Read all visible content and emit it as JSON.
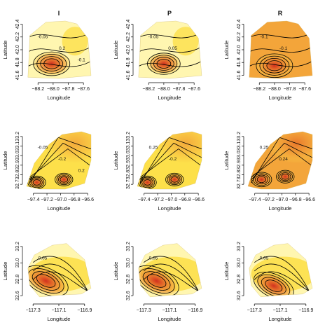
{
  "figure": {
    "column_titles": [
      "I",
      "P",
      "R"
    ],
    "xlabel": "Longitude",
    "ylabel": "Latitude"
  },
  "colors": {
    "pale": "#fff6b0",
    "yellow": "#fde04a",
    "orange": "#f3a53a",
    "deep_orange": "#e8742a",
    "red": "#d1311e",
    "contour": "#000000"
  },
  "chart_data": [
    {
      "type": "heatmap",
      "row": 1,
      "col": "I",
      "title": "I",
      "xlabel": "Longitude",
      "ylabel": "Latitude",
      "xlim": [
        -88.35,
        -87.5
      ],
      "ylim": [
        41.55,
        42.45
      ],
      "xticks": [
        "-88.2",
        "-88.0",
        "-87.8",
        "-87.6"
      ],
      "yticks": [
        "41.6",
        "41.8",
        "42.0",
        "42.2",
        "42.4"
      ],
      "contour_labels": [
        "-0.05",
        "0.2",
        "-0.1"
      ],
      "hotspots": [
        {
          "x": -88.02,
          "y": 41.78,
          "intensity": 1.0
        }
      ]
    },
    {
      "type": "heatmap",
      "row": 1,
      "col": "P",
      "title": "P",
      "xlabel": "Longitude",
      "ylabel": "Latitude",
      "xlim": [
        -88.35,
        -87.5
      ],
      "ylim": [
        41.55,
        42.45
      ],
      "xticks": [
        "-88.2",
        "-88.0",
        "-87.8",
        "-87.6"
      ],
      "yticks": [
        "41.6",
        "41.8",
        "42.0",
        "42.2",
        "42.4"
      ],
      "contour_labels": [
        "-0.05",
        "0.05"
      ],
      "hotspots": [
        {
          "x": -88.0,
          "y": 41.78,
          "intensity": 0.9
        }
      ]
    },
    {
      "type": "heatmap",
      "row": 1,
      "col": "R",
      "title": "R",
      "xlabel": "Longitude",
      "ylabel": "Latitude",
      "xlim": [
        -88.35,
        -87.5
      ],
      "ylim": [
        41.55,
        42.45
      ],
      "xticks": [
        "-88.2",
        "-88.0",
        "-87.8",
        "-87.6"
      ],
      "yticks": [
        "41.6",
        "41.8",
        "42.0",
        "42.2",
        "42.4"
      ],
      "contour_labels": [
        "-0.1",
        "-0.1"
      ],
      "hotspots": [
        {
          "x": -88.0,
          "y": 41.75,
          "intensity": 1.0
        }
      ]
    },
    {
      "type": "heatmap",
      "row": 2,
      "col": "I",
      "title": "",
      "xlabel": "Longitude",
      "ylabel": "Latitude",
      "xlim": [
        -97.5,
        -96.55
      ],
      "ylim": [
        32.65,
        33.25
      ],
      "xticks": [
        "-97.4",
        "-97.2",
        "-97.0",
        "-96.8",
        "-96.6"
      ],
      "yticks": [
        "32.7",
        "32.8",
        "32.9",
        "33.0",
        "33.1",
        "33.2"
      ],
      "contour_labels": [
        "-0.05",
        "-0.2",
        "0.2"
      ],
      "hotspots": [
        {
          "x": -97.35,
          "y": 32.72,
          "intensity": 0.7
        },
        {
          "x": -96.95,
          "y": 32.75,
          "intensity": 0.7
        }
      ]
    },
    {
      "type": "heatmap",
      "row": 2,
      "col": "P",
      "title": "",
      "xlabel": "Longitude",
      "ylabel": "Latitude",
      "xlim": [
        -97.5,
        -96.55
      ],
      "ylim": [
        32.65,
        33.25
      ],
      "xticks": [
        "-97.4",
        "-97.2",
        "-97.0",
        "-96.8",
        "-96.6"
      ],
      "yticks": [
        "32.7",
        "32.8",
        "32.9",
        "33.0",
        "33.1",
        "33.2"
      ],
      "contour_labels": [
        "0.25",
        "-0.2"
      ],
      "hotspots": [
        {
          "x": -97.35,
          "y": 32.72,
          "intensity": 0.7
        },
        {
          "x": -96.95,
          "y": 32.75,
          "intensity": 0.7
        }
      ]
    },
    {
      "type": "heatmap",
      "row": 2,
      "col": "R",
      "title": "",
      "xlabel": "Longitude",
      "ylabel": "Latitude",
      "xlim": [
        -97.5,
        -96.55
      ],
      "ylim": [
        32.65,
        33.25
      ],
      "xticks": [
        "-97.4",
        "-97.2",
        "-97.0",
        "-96.8",
        "-96.6"
      ],
      "yticks": [
        "32.7",
        "32.8",
        "32.9",
        "33.0",
        "33.1",
        "33.2"
      ],
      "contour_labels": [
        "0.25",
        "0.24"
      ],
      "hotspots": [
        {
          "x": -97.3,
          "y": 32.75,
          "intensity": 0.8
        },
        {
          "x": -96.95,
          "y": 32.78,
          "intensity": 0.7
        }
      ]
    },
    {
      "type": "heatmap",
      "row": 3,
      "col": "I",
      "title": "",
      "xlabel": "Longitude",
      "ylabel": "Latitude",
      "xlim": [
        -117.35,
        -116.85
      ],
      "ylim": [
        32.55,
        33.25
      ],
      "xticks": [
        "-117.3",
        "-117.1",
        "-116.9"
      ],
      "yticks": [
        "32.6",
        "32.8",
        "33.0",
        "33.2"
      ],
      "contour_labels": [
        "0.05"
      ],
      "hotspots": [
        {
          "x": -117.2,
          "y": 32.78,
          "intensity": 1.0
        }
      ]
    },
    {
      "type": "heatmap",
      "row": 3,
      "col": "P",
      "title": "",
      "xlabel": "Longitude",
      "ylabel": "Latitude",
      "xlim": [
        -117.35,
        -116.85
      ],
      "ylim": [
        32.55,
        33.25
      ],
      "xticks": [
        "-117.3",
        "-117.1",
        "-116.9"
      ],
      "yticks": [
        "32.6",
        "32.8",
        "33.0",
        "33.2"
      ],
      "contour_labels": [
        "0.05"
      ],
      "hotspots": [
        {
          "x": -117.2,
          "y": 32.78,
          "intensity": 1.0
        }
      ]
    },
    {
      "type": "heatmap",
      "row": 3,
      "col": "R",
      "title": "",
      "xlabel": "Longitude",
      "ylabel": "Latitude",
      "xlim": [
        -117.35,
        -116.85
      ],
      "ylim": [
        32.55,
        33.25
      ],
      "xticks": [
        "-117.3",
        "-117.1",
        "-116.9"
      ],
      "yticks": [
        "32.6",
        "32.8",
        "33.0",
        "33.2"
      ],
      "contour_labels": [
        "0.05"
      ],
      "hotspots": [
        {
          "x": -117.15,
          "y": 32.72,
          "intensity": 0.9
        }
      ]
    }
  ]
}
